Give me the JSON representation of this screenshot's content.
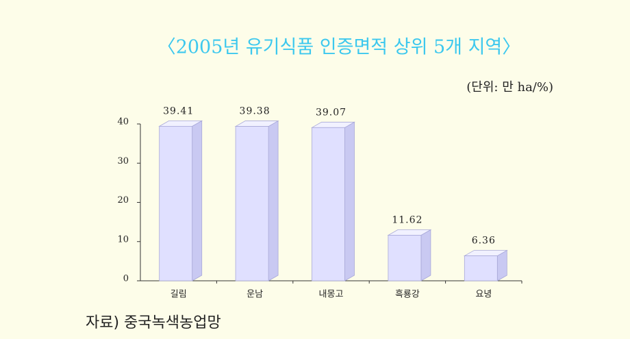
{
  "chart_data": {
    "type": "bar3d",
    "title": "〈2005년 유기식품 인증면적 상위 5개 지역〉",
    "unit_label": "(단위: 만 ha/%)",
    "source": "자료) 중국녹색농업망",
    "categories": [
      "길림",
      "운남",
      "내몽고",
      "흑룡강",
      "요녕"
    ],
    "values": [
      39.41,
      39.38,
      39.07,
      11.62,
      6.36
    ],
    "color": "#e0e0ff",
    "ylim": [
      0,
      40
    ],
    "yticks": [
      0,
      10,
      20,
      30,
      40
    ],
    "grid": false
  }
}
